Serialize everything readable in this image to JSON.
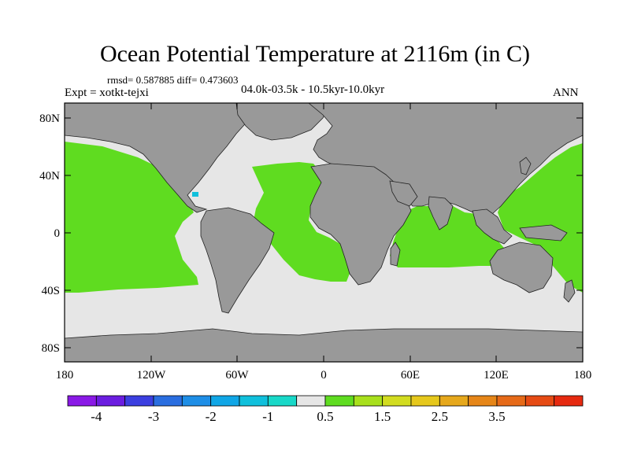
{
  "title": "Ocean Potential Temperature at 2116m (in C)",
  "stats": "rmsd= 0.587885 diff= 0.473603",
  "experiment": "Expt = xotkt-tejxi",
  "period": "04.0k-03.5k - 10.5kyr-10.0kyr",
  "season": "ANN",
  "map": {
    "lon_ticks": [
      "180",
      "120W",
      "60W",
      "0",
      "60E",
      "120E",
      "180"
    ],
    "lat_ticks": [
      "80N",
      "40N",
      "0",
      "40S",
      "80S"
    ],
    "colors": {
      "land": "#999999",
      "near_zero": "#e6e6e6",
      "warm": "#5fdc20"
    }
  },
  "colorbar": {
    "colors": [
      "#8a19e6",
      "#6b1de0",
      "#3b3fe0",
      "#2a6ee0",
      "#1e8ee6",
      "#10a6e6",
      "#10c0dc",
      "#18d8c8",
      "#e6e6e6",
      "#5fdc20",
      "#a8e01c",
      "#d2dc20",
      "#e6c81c",
      "#e6a81c",
      "#e68618",
      "#e66a18",
      "#e64b14",
      "#e62a10"
    ],
    "labels": [
      "-4",
      "-3",
      "-2",
      "-1",
      "0.5",
      "1.5",
      "2.5",
      "3.5"
    ]
  }
}
